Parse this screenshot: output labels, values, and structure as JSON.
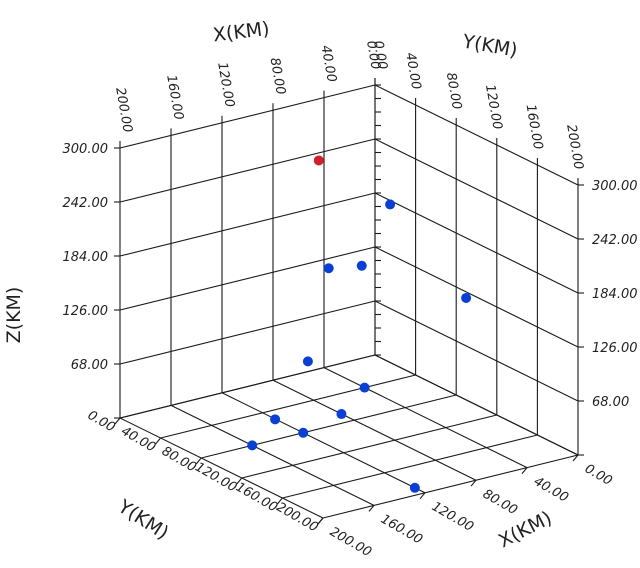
{
  "chart_data": {
    "type": "scatter",
    "dimensions": 3,
    "title": "",
    "axes": {
      "x": {
        "label": "X(KM)",
        "range": [
          0,
          200
        ],
        "ticks": [
          "0.00",
          "40.00",
          "80.00",
          "120.00",
          "160.00",
          "200.00"
        ]
      },
      "y": {
        "label": "Y(KM)",
        "range": [
          0,
          200
        ],
        "ticks": [
          "0.00",
          "40.00",
          "80.00",
          "120.00",
          "160.00",
          "200.00"
        ]
      },
      "z": {
        "label": "Z(KM)",
        "range": [
          10,
          300
        ],
        "ticks": [
          "68.00",
          "126.00",
          "184.00",
          "242.00",
          "300.00"
        ]
      }
    },
    "grid": true,
    "colors": {
      "blue": "#0a3fd6",
      "red": "#d0202a"
    },
    "points": [
      {
        "x": 60,
        "y": 20,
        "z": 250,
        "color": "red"
      },
      {
        "x": 20,
        "y": 40,
        "z": 200,
        "color": "blue"
      },
      {
        "x": 180,
        "y": 160,
        "z": 150,
        "color": "blue"
      },
      {
        "x": 90,
        "y": 100,
        "z": 190,
        "color": "blue"
      },
      {
        "x": 100,
        "y": 80,
        "z": 180,
        "color": "blue"
      },
      {
        "x": 150,
        "y": 90,
        "z": 40,
        "color": "blue"
      },
      {
        "x": 40,
        "y": 140,
        "z": 160,
        "color": "blue"
      },
      {
        "x": 90,
        "y": 80,
        "z": 20,
        "color": "blue"
      },
      {
        "x": 40,
        "y": 40,
        "z": 10,
        "color": "blue"
      },
      {
        "x": 120,
        "y": 80,
        "z": 10,
        "color": "blue"
      },
      {
        "x": 160,
        "y": 80,
        "z": 10,
        "color": "blue"
      },
      {
        "x": 120,
        "y": 190,
        "z": 10,
        "color": "blue"
      }
    ]
  }
}
